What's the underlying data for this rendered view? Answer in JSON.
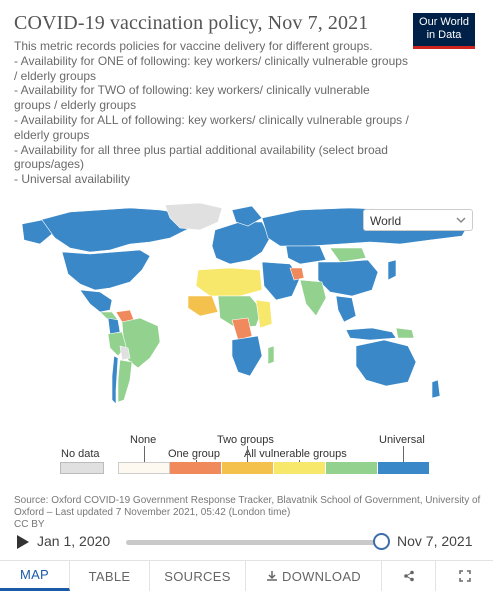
{
  "header": {
    "title": "COVID-19 vaccination policy, Nov 7, 2021",
    "logo_line1": "Our World",
    "logo_line2": "in Data",
    "subtitle_lines": [
      "This metric records policies for vaccine delivery for different groups.",
      "- Availability for ONE of following: key workers/ clinically vulnerable groups / elderly groups",
      "- Availability for TWO of following: key workers/ clinically vulnerable groups / elderly groups",
      "- Availability for ALL of following: key workers/ clinically vulnerable groups / elderly groups",
      "- Availability for all three plus partial additional availability (select broad groups/ages)",
      "- Universal availability"
    ]
  },
  "region_select": {
    "value": "World"
  },
  "legend": {
    "no_data": "No data",
    "categories": [
      {
        "label": "None",
        "color": "#fdf9f1"
      },
      {
        "label": "One group",
        "color": "#f0895c"
      },
      {
        "label": "Two groups",
        "color": "#f5c14d"
      },
      {
        "label": "All vulnerable groups",
        "color": "#f7e86b"
      },
      {
        "label": "",
        "color": "#92d18e"
      },
      {
        "label": "Universal",
        "color": "#3a88c8"
      }
    ],
    "no_data_color": "#e0e0e0"
  },
  "source": {
    "text": "Source: Oxford COVID-19 Government Response Tracker, Blavatnik School of Government, University of Oxford – Last updated 7 November 2021, 05:42 (London time)",
    "license": "CC BY"
  },
  "timeline": {
    "start": "Jan 1, 2020",
    "end": "Nov 7, 2021",
    "position": 1.0
  },
  "tabs": [
    {
      "label": "MAP",
      "active": true
    },
    {
      "label": "TABLE",
      "active": false
    },
    {
      "label": "SOURCES",
      "active": false
    },
    {
      "label": "DOWNLOAD",
      "active": false
    }
  ],
  "icons": [
    "download-icon",
    "share-icon",
    "fullscreen-icon",
    "play-icon",
    "chevron-down-icon"
  ]
}
